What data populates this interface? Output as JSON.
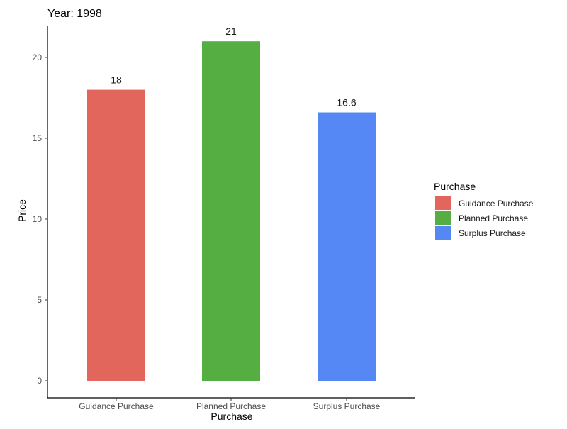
{
  "chart_data": {
    "type": "bar",
    "title": "Year: 1998",
    "xlabel": "Purchase",
    "ylabel": "Price",
    "categories": [
      "Guidance Purchase",
      "Planned Purchase",
      "Surplus Purchase"
    ],
    "values": [
      18,
      21,
      16.6
    ],
    "value_labels": [
      "18",
      "21",
      "16.6"
    ],
    "colors": [
      "#E2665C",
      "#55AE42",
      "#5588F5"
    ],
    "ylim": [
      0,
      22
    ],
    "yticks": [
      0,
      5,
      10,
      15,
      20
    ],
    "grid": false,
    "legend": {
      "title": "Purchase",
      "placement": "right",
      "entries": [
        "Guidance Purchase",
        "Planned Purchase",
        "Surplus Purchase"
      ]
    }
  }
}
